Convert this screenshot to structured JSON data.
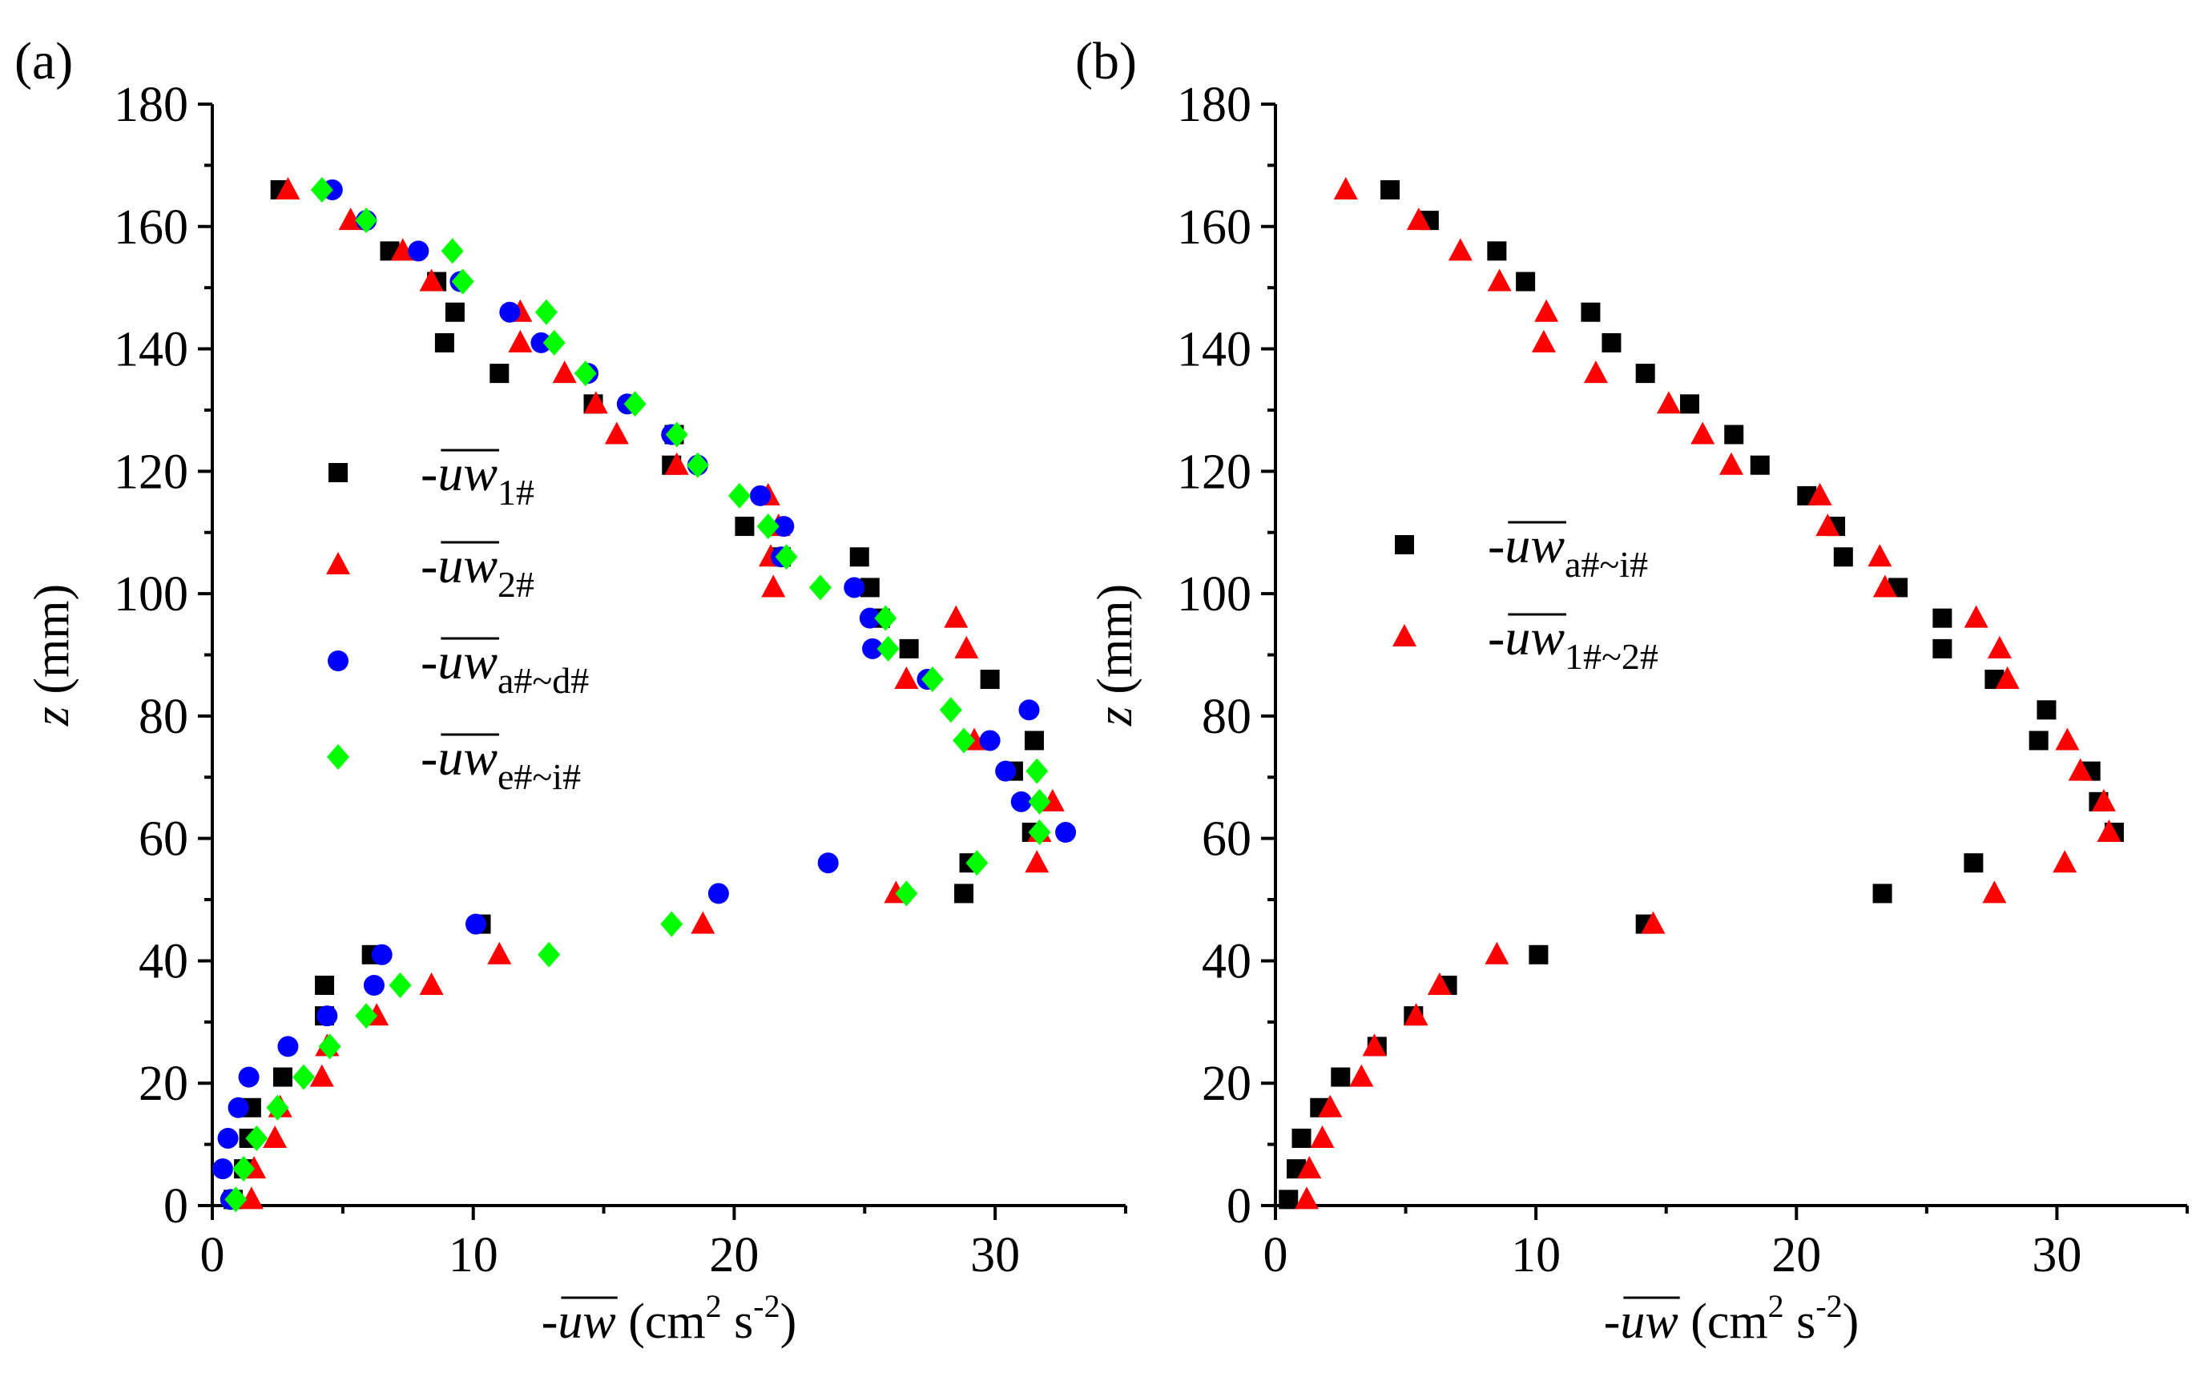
{
  "chart_data": [
    {
      "type": "scatter",
      "panel_label": "(a)",
      "xlabel": {
        "prefix": "-",
        "overbar": "uw",
        "units": "(cm",
        "exp1": "2",
        "mid": " s",
        "exp2": "-2",
        "close": ")"
      },
      "ylabel": {
        "symbol": "z",
        "units": "(mm)"
      },
      "xlim": [
        0,
        35
      ],
      "ylim": [
        0,
        180
      ],
      "xticks": [
        0,
        10,
        20,
        30
      ],
      "yticks": [
        0,
        20,
        40,
        60,
        80,
        100,
        120,
        140,
        160,
        180
      ],
      "legend_position": "center-left",
      "series": [
        {
          "name": "1#",
          "label_prefix": "-",
          "label_overbar": "uw",
          "label_sub": "1#",
          "marker": "square",
          "color": "#000000",
          "points": [
            [
              2.6,
              166
            ],
            [
              6.8,
              156
            ],
            [
              8.6,
              151
            ],
            [
              9.3,
              146
            ],
            [
              8.9,
              141
            ],
            [
              11.0,
              136
            ],
            [
              14.6,
              131
            ],
            [
              17.7,
              126
            ],
            [
              17.6,
              121
            ],
            [
              20.4,
              111
            ],
            [
              21.8,
              106
            ],
            [
              24.8,
              106
            ],
            [
              25.2,
              101
            ],
            [
              25.6,
              96
            ],
            [
              26.7,
              91
            ],
            [
              29.8,
              86
            ],
            [
              30.7,
              71
            ],
            [
              31.4,
              61
            ],
            [
              31.5,
              76
            ],
            [
              29.0,
              56
            ],
            [
              28.8,
              51
            ],
            [
              10.3,
              46
            ],
            [
              6.1,
              41
            ],
            [
              4.3,
              36
            ],
            [
              4.3,
              31
            ],
            [
              2.7,
              21
            ],
            [
              1.5,
              16
            ],
            [
              1.4,
              11
            ],
            [
              1.2,
              6
            ],
            [
              0.8,
              1
            ]
          ]
        },
        {
          "name": "2#",
          "label_prefix": "-",
          "label_overbar": "uw",
          "label_sub": "2#",
          "marker": "triangle",
          "color": "#ff0000",
          "points": [
            [
              2.9,
              166
            ],
            [
              5.3,
              161
            ],
            [
              7.3,
              156
            ],
            [
              8.4,
              151
            ],
            [
              11.8,
              146
            ],
            [
              11.8,
              141
            ],
            [
              13.5,
              136
            ],
            [
              14.7,
              131
            ],
            [
              15.5,
              126
            ],
            [
              17.8,
              121
            ],
            [
              21.3,
              116
            ],
            [
              21.7,
              111
            ],
            [
              21.4,
              106
            ],
            [
              21.5,
              101
            ],
            [
              28.5,
              96
            ],
            [
              28.9,
              91
            ],
            [
              26.6,
              86
            ],
            [
              29.2,
              76
            ],
            [
              32.2,
              66
            ],
            [
              31.7,
              61
            ],
            [
              31.6,
              56
            ],
            [
              26.2,
              51
            ],
            [
              18.8,
              46
            ],
            [
              11.0,
              41
            ],
            [
              8.4,
              36
            ],
            [
              6.3,
              31
            ],
            [
              4.4,
              26
            ],
            [
              4.2,
              21
            ],
            [
              2.6,
              16
            ],
            [
              2.4,
              11
            ],
            [
              1.6,
              6
            ],
            [
              1.5,
              1
            ]
          ]
        },
        {
          "name": "a#~d#",
          "label_prefix": "-",
          "label_overbar": "uw",
          "label_sub": "a#~d#",
          "marker": "circle",
          "color": "#0000ff",
          "points": [
            [
              4.6,
              166
            ],
            [
              5.9,
              161
            ],
            [
              7.9,
              156
            ],
            [
              9.5,
              151
            ],
            [
              11.4,
              146
            ],
            [
              12.6,
              141
            ],
            [
              14.4,
              136
            ],
            [
              15.9,
              131
            ],
            [
              17.6,
              126
            ],
            [
              18.6,
              121
            ],
            [
              21.0,
              116
            ],
            [
              21.9,
              111
            ],
            [
              21.8,
              106
            ],
            [
              24.6,
              101
            ],
            [
              25.2,
              96
            ],
            [
              25.3,
              91
            ],
            [
              27.4,
              86
            ],
            [
              29.8,
              76
            ],
            [
              30.4,
              71
            ],
            [
              31.0,
              66
            ],
            [
              31.3,
              81
            ],
            [
              32.7,
              61
            ],
            [
              23.6,
              56
            ],
            [
              19.4,
              51
            ],
            [
              10.1,
              46
            ],
            [
              6.5,
              41
            ],
            [
              6.2,
              36
            ],
            [
              4.4,
              31
            ],
            [
              2.9,
              26
            ],
            [
              1.4,
              21
            ],
            [
              1.0,
              16
            ],
            [
              0.6,
              11
            ],
            [
              0.4,
              6
            ],
            [
              0.7,
              1
            ]
          ]
        },
        {
          "name": "e#~i#",
          "label_prefix": "-",
          "label_overbar": "uw",
          "label_sub": "e#~i#",
          "marker": "diamond",
          "color": "#00ff00",
          "points": [
            [
              4.2,
              166
            ],
            [
              5.9,
              161
            ],
            [
              9.2,
              156
            ],
            [
              9.6,
              151
            ],
            [
              12.8,
              146
            ],
            [
              13.1,
              141
            ],
            [
              14.3,
              136
            ],
            [
              16.2,
              131
            ],
            [
              17.8,
              126
            ],
            [
              18.6,
              121
            ],
            [
              20.2,
              116
            ],
            [
              21.3,
              111
            ],
            [
              22.0,
              106
            ],
            [
              23.3,
              101
            ],
            [
              25.8,
              96
            ],
            [
              25.9,
              91
            ],
            [
              27.6,
              86
            ],
            [
              28.3,
              81
            ],
            [
              28.8,
              76
            ],
            [
              31.6,
              71
            ],
            [
              31.7,
              66
            ],
            [
              31.7,
              61
            ],
            [
              29.3,
              56
            ],
            [
              26.6,
              51
            ],
            [
              17.6,
              46
            ],
            [
              12.9,
              41
            ],
            [
              7.2,
              36
            ],
            [
              5.9,
              31
            ],
            [
              4.5,
              26
            ],
            [
              3.5,
              21
            ],
            [
              2.5,
              16
            ],
            [
              1.7,
              11
            ],
            [
              1.2,
              6
            ],
            [
              0.9,
              1
            ]
          ]
        }
      ]
    },
    {
      "type": "scatter",
      "panel_label": "(b)",
      "xlabel": {
        "prefix": "-",
        "overbar": "uw",
        "units": "(cm",
        "exp1": "2",
        "mid": " s",
        "exp2": "-2",
        "close": ")"
      },
      "ylabel": {
        "symbol": "z",
        "units": "(mm)"
      },
      "xlim": [
        0,
        35
      ],
      "ylim": [
        0,
        180
      ],
      "xticks": [
        0,
        10,
        20,
        30
      ],
      "yticks": [
        0,
        20,
        40,
        60,
        80,
        100,
        120,
        140,
        160,
        180
      ],
      "legend_position": "center-left",
      "series": [
        {
          "name": "a#~i#",
          "label_prefix": "-",
          "label_overbar": "uw",
          "label_sub": "a#~i#",
          "marker": "square",
          "color": "#000000",
          "points": [
            [
              4.4,
              166
            ],
            [
              5.9,
              161
            ],
            [
              8.5,
              156
            ],
            [
              9.6,
              151
            ],
            [
              12.1,
              146
            ],
            [
              12.9,
              141
            ],
            [
              14.2,
              136
            ],
            [
              15.9,
              131
            ],
            [
              17.6,
              126
            ],
            [
              18.6,
              121
            ],
            [
              20.4,
              116
            ],
            [
              21.5,
              111
            ],
            [
              21.8,
              106
            ],
            [
              23.9,
              101
            ],
            [
              25.6,
              96
            ],
            [
              25.6,
              91
            ],
            [
              27.6,
              86
            ],
            [
              29.6,
              81
            ],
            [
              29.3,
              76
            ],
            [
              31.3,
              71
            ],
            [
              31.6,
              66
            ],
            [
              32.2,
              61
            ],
            [
              26.8,
              56
            ],
            [
              23.3,
              51
            ],
            [
              14.2,
              46
            ],
            [
              10.1,
              41
            ],
            [
              6.6,
              36
            ],
            [
              5.3,
              31
            ],
            [
              3.9,
              26
            ],
            [
              2.5,
              21
            ],
            [
              1.7,
              16
            ],
            [
              1.0,
              11
            ],
            [
              0.8,
              6
            ],
            [
              0.5,
              1
            ]
          ]
        },
        {
          "name": "1#~2#",
          "label_prefix": "-",
          "label_overbar": "uw",
          "label_sub": "1#~2#",
          "marker": "triangle",
          "color": "#ff0000",
          "points": [
            [
              2.7,
              166
            ],
            [
              5.5,
              161
            ],
            [
              7.1,
              156
            ],
            [
              8.6,
              151
            ],
            [
              10.4,
              146
            ],
            [
              10.3,
              141
            ],
            [
              12.3,
              136
            ],
            [
              15.1,
              131
            ],
            [
              16.4,
              126
            ],
            [
              17.5,
              121
            ],
            [
              20.9,
              116
            ],
            [
              21.2,
              111
            ],
            [
              23.2,
              106
            ],
            [
              23.4,
              101
            ],
            [
              26.9,
              96
            ],
            [
              27.8,
              91
            ],
            [
              28.1,
              86
            ],
            [
              30.4,
              76
            ],
            [
              30.9,
              71
            ],
            [
              31.8,
              66
            ],
            [
              32.0,
              61
            ],
            [
              30.3,
              56
            ],
            [
              27.6,
              51
            ],
            [
              14.5,
              46
            ],
            [
              8.5,
              41
            ],
            [
              6.3,
              36
            ],
            [
              5.4,
              31
            ],
            [
              3.8,
              26
            ],
            [
              3.3,
              21
            ],
            [
              2.1,
              16
            ],
            [
              1.8,
              11
            ],
            [
              1.3,
              6
            ],
            [
              1.2,
              1
            ]
          ]
        }
      ]
    }
  ]
}
